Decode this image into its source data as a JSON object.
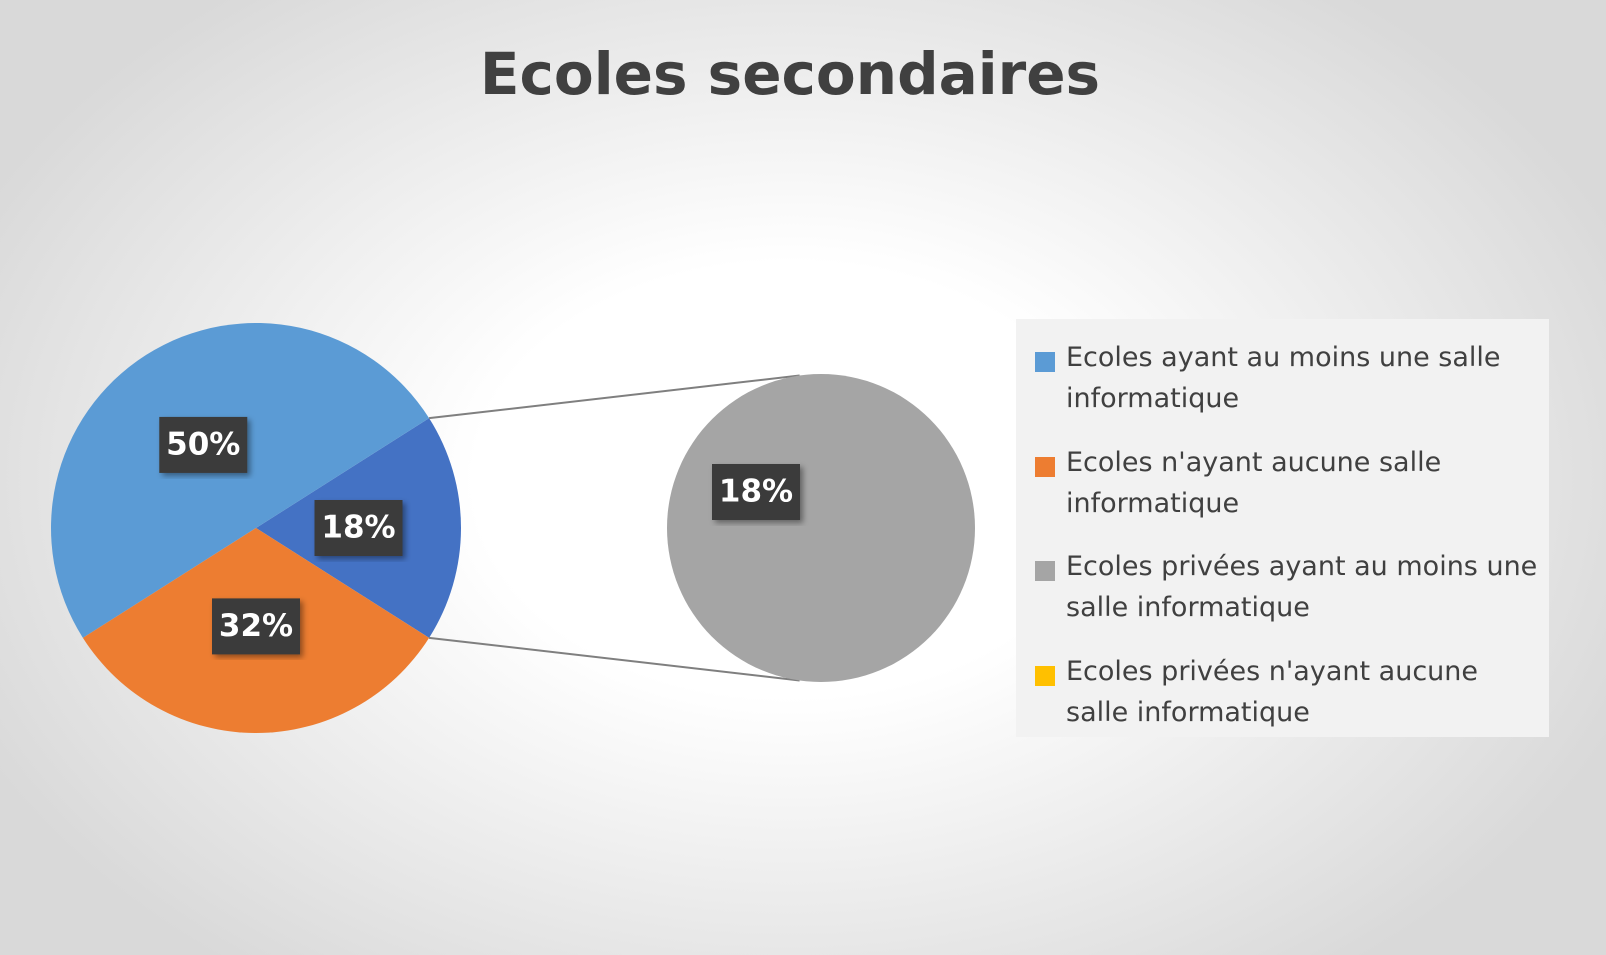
{
  "chart_data": {
    "type": "pie-of-pie",
    "title": "Ecoles secondaires",
    "categories": [
      "Ecoles ayant au moins une salle informatique",
      "Ecoles n'ayant aucune salle informatique",
      "Ecoles privées ayant au moins une salle informatique",
      "Ecoles privées n'ayant aucune salle informatique"
    ],
    "values": [
      50,
      32,
      18,
      0
    ],
    "value_labels": [
      "50%",
      "32%",
      "18%",
      null
    ],
    "colors": [
      "#5b9bd5",
      "#ed7d31",
      "#a5a5a5",
      "#ffc000"
    ],
    "second_plot_count": 2,
    "other_value": 18,
    "other_label": "18%",
    "other_color": "#4472c4",
    "legend": "right"
  }
}
